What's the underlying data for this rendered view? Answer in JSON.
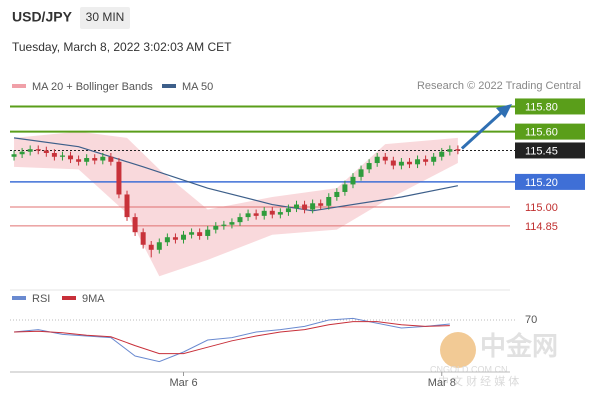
{
  "header": {
    "symbol": "USD/JPY",
    "timeframe": "30 MIN",
    "timestamp": "Tuesday, March 8, 2022 3:02:03 AM CET"
  },
  "chart_data": [
    {
      "type": "candlestick",
      "source": "Research © 2022 Trading Central",
      "xlim": [
        -0.5,
        56.5
      ],
      "ylim": [
        114.38,
        116.09
      ],
      "up_color": "#2e9c3c",
      "down_color": "#c8323a",
      "xticks": [
        {
          "value": 21,
          "label": "Mar 6"
        },
        {
          "value": 53,
          "label": "Mar 8"
        }
      ],
      "open": [
        115.4,
        115.42,
        115.44,
        115.46,
        115.45,
        115.43,
        115.4,
        115.41,
        115.38,
        115.36,
        115.39,
        115.37,
        115.4,
        115.36,
        115.1,
        114.92,
        114.8,
        114.7,
        114.66,
        114.72,
        114.76,
        114.74,
        114.78,
        114.8,
        114.77,
        114.82,
        114.85,
        114.86,
        114.88,
        114.92,
        114.95,
        114.93,
        114.97,
        114.94,
        114.96,
        114.99,
        115.02,
        114.98,
        115.03,
        115.01,
        115.08,
        115.12,
        115.18,
        115.24,
        115.3,
        115.35,
        115.4,
        115.37,
        115.33,
        115.36,
        115.34,
        115.38,
        115.36,
        115.4,
        115.44,
        115.46
      ],
      "high": [
        115.45,
        115.47,
        115.49,
        115.49,
        115.48,
        115.46,
        115.44,
        115.44,
        115.41,
        115.42,
        115.42,
        115.43,
        115.43,
        115.39,
        115.13,
        114.95,
        114.83,
        114.73,
        114.75,
        114.79,
        114.79,
        114.81,
        114.83,
        114.83,
        114.85,
        114.88,
        114.89,
        114.91,
        114.95,
        114.98,
        114.98,
        115.0,
        115.0,
        114.99,
        115.02,
        115.05,
        115.05,
        115.06,
        115.06,
        115.11,
        115.15,
        115.21,
        115.27,
        115.33,
        115.38,
        115.43,
        115.43,
        115.4,
        115.39,
        115.39,
        115.41,
        115.41,
        115.43,
        115.47,
        115.49,
        115.49
      ],
      "low": [
        115.37,
        115.39,
        115.41,
        115.42,
        115.4,
        115.37,
        115.37,
        115.35,
        115.33,
        115.33,
        115.34,
        115.34,
        115.33,
        115.07,
        114.89,
        114.77,
        114.67,
        114.6,
        114.63,
        114.69,
        114.71,
        114.71,
        114.75,
        114.74,
        114.74,
        114.79,
        114.82,
        114.83,
        114.85,
        114.89,
        114.9,
        114.9,
        114.91,
        114.91,
        114.93,
        114.96,
        114.95,
        114.95,
        114.98,
        114.98,
        115.05,
        115.09,
        115.15,
        115.21,
        115.27,
        115.32,
        115.34,
        115.3,
        115.3,
        115.31,
        115.31,
        115.33,
        115.33,
        115.37,
        115.41,
        115.42
      ],
      "close": [
        115.42,
        115.44,
        115.46,
        115.45,
        115.43,
        115.4,
        115.41,
        115.38,
        115.36,
        115.39,
        115.37,
        115.4,
        115.36,
        115.1,
        114.92,
        114.8,
        114.7,
        114.66,
        114.72,
        114.76,
        114.74,
        114.78,
        114.8,
        114.77,
        114.82,
        114.85,
        114.86,
        114.88,
        114.92,
        114.95,
        114.93,
        114.97,
        114.94,
        114.96,
        114.99,
        115.02,
        114.98,
        115.03,
        115.01,
        115.08,
        115.12,
        115.18,
        115.24,
        115.3,
        115.35,
        115.4,
        115.37,
        115.33,
        115.36,
        115.34,
        115.38,
        115.36,
        115.4,
        115.44,
        115.46,
        115.45
      ],
      "series": [
        {
          "name": "MA 20 + Bollinger Bands",
          "color": "#f0a0a8",
          "x": [
            0,
            8,
            14,
            18,
            24,
            32,
            40,
            46,
            55
          ],
          "upper": [
            115.55,
            115.6,
            115.55,
            115.3,
            114.98,
            115.08,
            115.15,
            115.5,
            115.55
          ],
          "lower": [
            115.32,
            115.3,
            114.95,
            114.45,
            114.58,
            114.78,
            114.82,
            115.05,
            115.35
          ]
        },
        {
          "name": "MA 50",
          "color": "#3d5f8a",
          "x": [
            0,
            8,
            16,
            24,
            32,
            37,
            48,
            55
          ],
          "values": [
            115.55,
            115.48,
            115.32,
            115.15,
            115.02,
            114.97,
            115.08,
            115.17
          ]
        }
      ],
      "levels": {
        "values": [
          115.8,
          115.6,
          115.45,
          115.2,
          115,
          114.85
        ],
        "value_labels": [
          "115.80",
          "115.60",
          "115.45",
          "115.20",
          "115.00",
          "114.85"
        ],
        "colors": [
          "#5a9e1a",
          "#5a9e1a",
          "#222222",
          "#3f6fd6",
          "#e07070",
          "#e07070"
        ]
      }
    },
    {
      "type": "line",
      "xlim": [
        -0.5,
        56.5
      ],
      "ylim": [
        10,
        90
      ],
      "yticks": [
        70
      ],
      "series": [
        {
          "name": "RSI",
          "color": "#6a8ad0",
          "x": [
            0,
            3,
            6,
            9,
            12,
            15,
            18,
            21,
            24,
            27,
            30,
            33,
            36,
            39,
            42,
            45,
            48,
            51,
            54
          ],
          "values": [
            55,
            58,
            52,
            50,
            48,
            25,
            18,
            30,
            45,
            48,
            55,
            58,
            62,
            70,
            72,
            66,
            60,
            62,
            65
          ]
        },
        {
          "name": "9MA",
          "color": "#c8303a",
          "x": [
            0,
            3,
            6,
            9,
            12,
            15,
            18,
            21,
            24,
            27,
            30,
            33,
            36,
            39,
            42,
            45,
            48,
            51,
            54
          ],
          "values": [
            55,
            56,
            54,
            51,
            49,
            38,
            28,
            28,
            36,
            44,
            50,
            55,
            58,
            64,
            68,
            68,
            64,
            62,
            63
          ]
        }
      ]
    }
  ],
  "watermark": {
    "name": "中金网",
    "site": "CNGOLD.COM.CN",
    "tagline": "中 文 财 经 媒 体"
  }
}
